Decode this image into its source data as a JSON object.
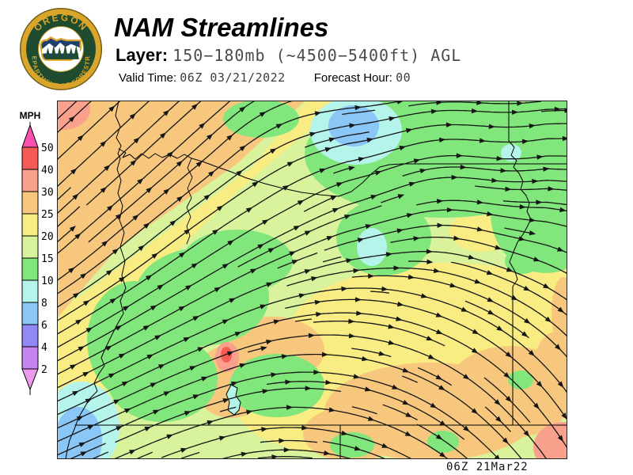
{
  "header": {
    "title": "NAM Streamlines",
    "layer_label": "Layer:",
    "layer_value": "150−180mb (~4500−5400ft) AGL",
    "valid_time_label": "Valid Time:",
    "valid_time_value": "06Z 03/21/2022",
    "forecast_hour_label": "Forecast Hour:",
    "forecast_hour_value": "00"
  },
  "logo": {
    "top_text": "OREGON",
    "bottom_text": "DEPARTMENT OF FORESTRY",
    "colors": {
      "ring": "#D9A62B",
      "band": "#1F4C2E",
      "field": "#FFFFFF",
      "state": "#1C3F6E",
      "trees": "#1F4C2E"
    }
  },
  "legend": {
    "title": "MPH",
    "labels": [
      "50",
      "40",
      "30",
      "25",
      "20",
      "15",
      "10",
      "8",
      "6",
      "4",
      "2"
    ],
    "colors": [
      "#F75B55",
      "#F9A18D",
      "#F7C77E",
      "#F8EC83",
      "#D8F39B",
      "#81E67B",
      "#B5F4EB",
      "#8AC6F6",
      "#9288F6",
      "#C584F0"
    ],
    "above_max_color": "#FA4FAE",
    "below_min_color": "#EC9AEE"
  },
  "map": {
    "timestamp": "06Z 21Mar22",
    "streamline_color": "#161616"
  }
}
